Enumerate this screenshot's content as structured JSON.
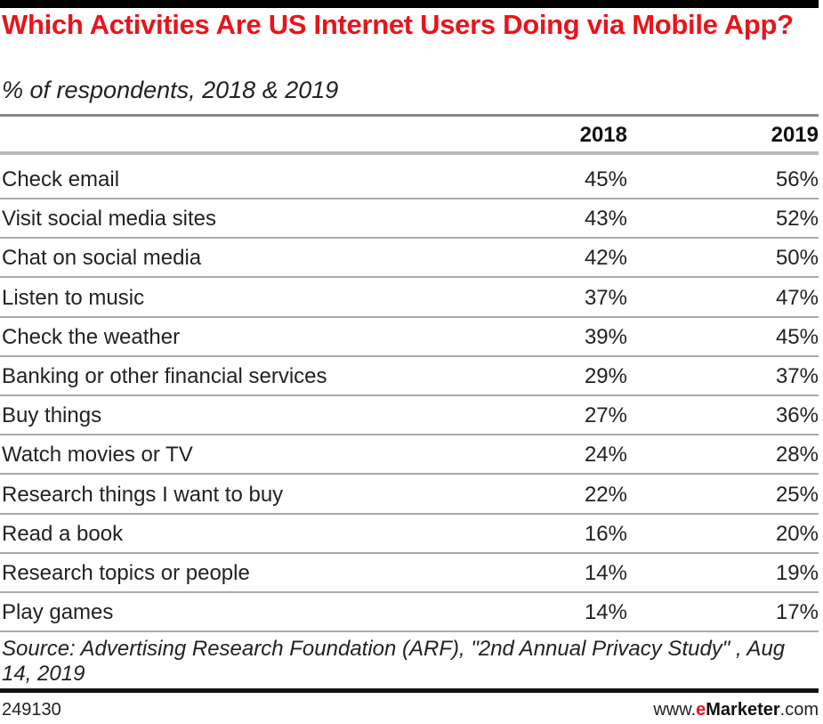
{
  "chart_data": {
    "type": "table",
    "title": "Which Activities Are US Internet Users Doing via Mobile App?",
    "subtitle": "% of respondents, 2018 & 2019",
    "columns": [
      "2018",
      "2019"
    ],
    "rows": [
      {
        "label": "Check email",
        "values": [
          "45%",
          "56%"
        ]
      },
      {
        "label": "Visit social media sites",
        "values": [
          "43%",
          "52%"
        ]
      },
      {
        "label": "Chat on social media",
        "values": [
          "42%",
          "50%"
        ]
      },
      {
        "label": "Listen to music",
        "values": [
          "37%",
          "47%"
        ]
      },
      {
        "label": "Check the weather",
        "values": [
          "39%",
          "45%"
        ]
      },
      {
        "label": "Banking or other financial services",
        "values": [
          "29%",
          "37%"
        ]
      },
      {
        "label": "Buy things",
        "values": [
          "27%",
          "36%"
        ]
      },
      {
        "label": "Watch movies or TV",
        "values": [
          "24%",
          "28%"
        ]
      },
      {
        "label": "Research things I want to buy",
        "values": [
          "22%",
          "25%"
        ]
      },
      {
        "label": "Read a book",
        "values": [
          "16%",
          "20%"
        ]
      },
      {
        "label": "Research topics or people",
        "values": [
          "14%",
          "19%"
        ]
      },
      {
        "label": "Play games",
        "values": [
          "14%",
          "17%"
        ]
      }
    ],
    "source": "Source: Advertising Research Foundation (ARF), \"2nd Annual Privacy Study\" , Aug 14, 2019",
    "chart_id": "249130",
    "brand": {
      "prefix": "www.",
      "accent": "e",
      "name": "Marketer",
      "suffix": ".com"
    },
    "colors": {
      "title": "#e8141c"
    }
  }
}
